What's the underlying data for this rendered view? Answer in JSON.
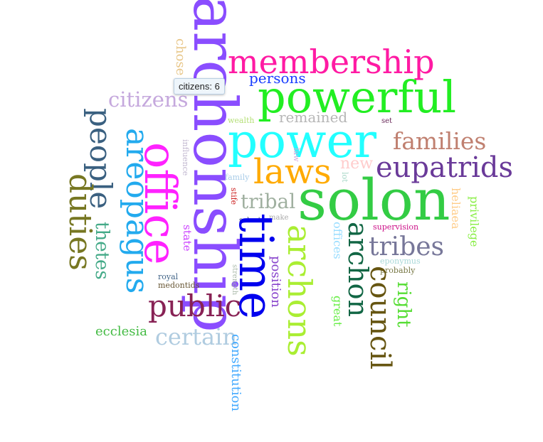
{
  "tooltip": {
    "text": "citizens: 6"
  },
  "words": [
    {
      "text": "archonship",
      "color": "#8a4dff"
    },
    {
      "text": "membership",
      "color": "#ff1aa3"
    },
    {
      "text": "persons",
      "color": "#1a3fff"
    },
    {
      "text": "powerful",
      "color": "#22ee22"
    },
    {
      "text": "citizens",
      "color": "#c5a8dd"
    },
    {
      "text": "chose",
      "color": "#e8c78a"
    },
    {
      "text": "remained",
      "color": "#b6b6b6"
    },
    {
      "text": "wealth",
      "color": "#b6e07a"
    },
    {
      "text": "set",
      "color": "#6a2a5a"
    },
    {
      "text": "power",
      "color": "#22ffff"
    },
    {
      "text": "families",
      "color": "#c08070"
    },
    {
      "text": "people",
      "color": "#3a6080"
    },
    {
      "text": "areopagus",
      "color": "#22aaee"
    },
    {
      "text": "office",
      "color": "#ff22ff"
    },
    {
      "text": "influence",
      "color": "#c2b8d0"
    },
    {
      "text": "laws",
      "color": "#ffaa00"
    },
    {
      "text": "law",
      "color": "#d4aadd"
    },
    {
      "text": "new",
      "color": "#ffcccc"
    },
    {
      "text": "eupatrids",
      "color": "#6a3a99"
    },
    {
      "text": "family",
      "color": "#a8cce8"
    },
    {
      "text": "lot",
      "color": "#a8d8c8"
    },
    {
      "text": "duties",
      "color": "#777722"
    },
    {
      "text": "solon",
      "color": "#33cc44"
    },
    {
      "text": "heliaea",
      "color": "#ffcc88"
    },
    {
      "text": "stife",
      "color": "#cc2222"
    },
    {
      "text": "tribal",
      "color": "#a0b0a0"
    },
    {
      "text": "privilege",
      "color": "#88ee44"
    },
    {
      "text": "solon's",
      "color": "#223355"
    },
    {
      "text": "make",
      "color": "#aaaaaa"
    },
    {
      "text": "time",
      "color": "#0000ee"
    },
    {
      "text": "archons",
      "color": "#aaee33"
    },
    {
      "text": "offices",
      "color": "#99ddff"
    },
    {
      "text": "archon",
      "color": "#116644"
    },
    {
      "text": "supervision",
      "color": "#cc1188"
    },
    {
      "text": "thetes",
      "color": "#44aa88"
    },
    {
      "text": "state",
      "color": "#cc44ff"
    },
    {
      "text": "tribes",
      "color": "#777799"
    },
    {
      "text": "eponymus",
      "color": "#a8d8d8"
    },
    {
      "text": "probably",
      "color": "#777744"
    },
    {
      "text": "royal",
      "color": "#446688"
    },
    {
      "text": "strength",
      "color": "#a8b8a8"
    },
    {
      "text": "position",
      "color": "#8844cc"
    },
    {
      "text": "medontids",
      "color": "#665533"
    },
    {
      "text": "council",
      "color": "#665511"
    },
    {
      "text": "right",
      "color": "#55dd33"
    },
    {
      "text": "public",
      "color": "#882255"
    },
    {
      "text": "great",
      "color": "#66ee44"
    },
    {
      "text": "ecclesia",
      "color": "#44bb44"
    },
    {
      "text": "certain",
      "color": "#b0cce0"
    },
    {
      "text": "constitution",
      "color": "#44aaff"
    }
  ]
}
